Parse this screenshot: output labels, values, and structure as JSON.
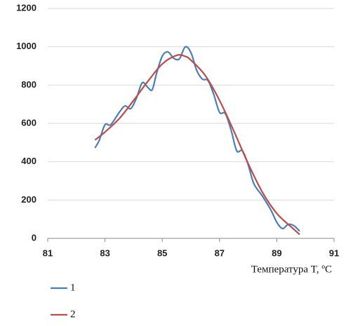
{
  "chart_data": {
    "type": "line",
    "x_label": "Температура T,  ºC",
    "xlim": [
      81,
      91
    ],
    "xticks": [
      81,
      83,
      85,
      87,
      89,
      91
    ],
    "ylim": [
      0,
      1200
    ],
    "yticks": [
      0,
      200,
      400,
      600,
      800,
      1000,
      1200
    ],
    "grid": true,
    "legend": "bottom-left",
    "series": [
      {
        "name": "1",
        "color": "#4a7ebb",
        "x": [
          82.65,
          82.8,
          83.0,
          83.2,
          83.5,
          83.7,
          83.9,
          84.1,
          84.3,
          84.5,
          84.65,
          84.8,
          85.0,
          85.2,
          85.4,
          85.6,
          85.8,
          86.0,
          86.2,
          86.4,
          86.6,
          86.8,
          87.0,
          87.2,
          87.4,
          87.6,
          87.8,
          88.0,
          88.2,
          88.5,
          88.8,
          89.0,
          89.2,
          89.4,
          89.6,
          89.8
        ],
        "values": [
          472,
          512,
          593,
          593,
          658,
          691,
          677,
          732,
          812,
          787,
          776,
          860,
          951,
          973,
          940,
          937,
          999,
          970,
          878,
          831,
          823,
          750,
          658,
          651,
          567,
          457,
          457,
          384,
          285,
          220,
          146,
          84,
          51,
          73,
          66,
          37
        ]
      },
      {
        "name": "2",
        "color": "#be4b48",
        "x": [
          82.65,
          83.0,
          83.5,
          84.0,
          84.5,
          85.0,
          85.5,
          85.8,
          86.0,
          86.5,
          87.0,
          87.5,
          88.0,
          88.5,
          89.0,
          89.5,
          89.8
        ],
        "values": [
          513,
          555,
          625,
          720,
          820,
          910,
          955,
          950,
          930,
          850,
          720,
          560,
          390,
          240,
          130,
          60,
          20
        ]
      }
    ]
  }
}
